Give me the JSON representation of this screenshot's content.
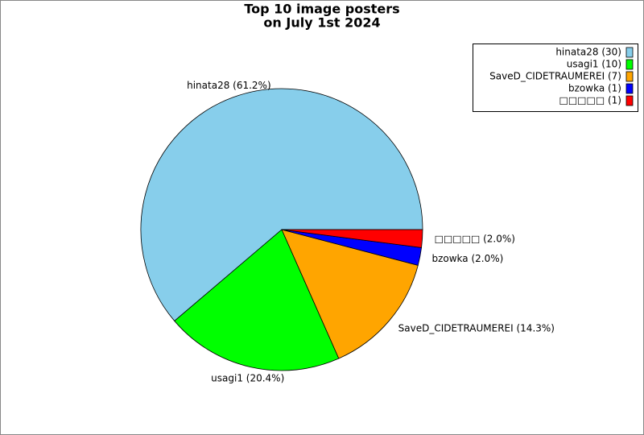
{
  "chart_data": {
    "type": "pie",
    "title": [
      "Top 10 image posters",
      "on July 1st 2024"
    ],
    "legend_labels": [
      "hinata28 (30)",
      "usagi1 (10)",
      "SaveD_CIDETRAUMEREI (7)",
      "bzowka (1)",
      "□□□□□ (1)"
    ],
    "values": [
      30,
      10,
      7,
      1,
      1
    ],
    "value_labels": [
      "hinata28 (61.2%)",
      "usagi1 (20.4%)",
      "SaveD_CIDETRAUMEREI (14.3%)",
      "bzowka (2.0%)",
      "□□□□□ (2.0%)"
    ],
    "colors": [
      "#87ceeb",
      "#00ff00",
      "#ffa500",
      "#0000ff",
      "#ff0000"
    ],
    "legend": "upper right"
  }
}
